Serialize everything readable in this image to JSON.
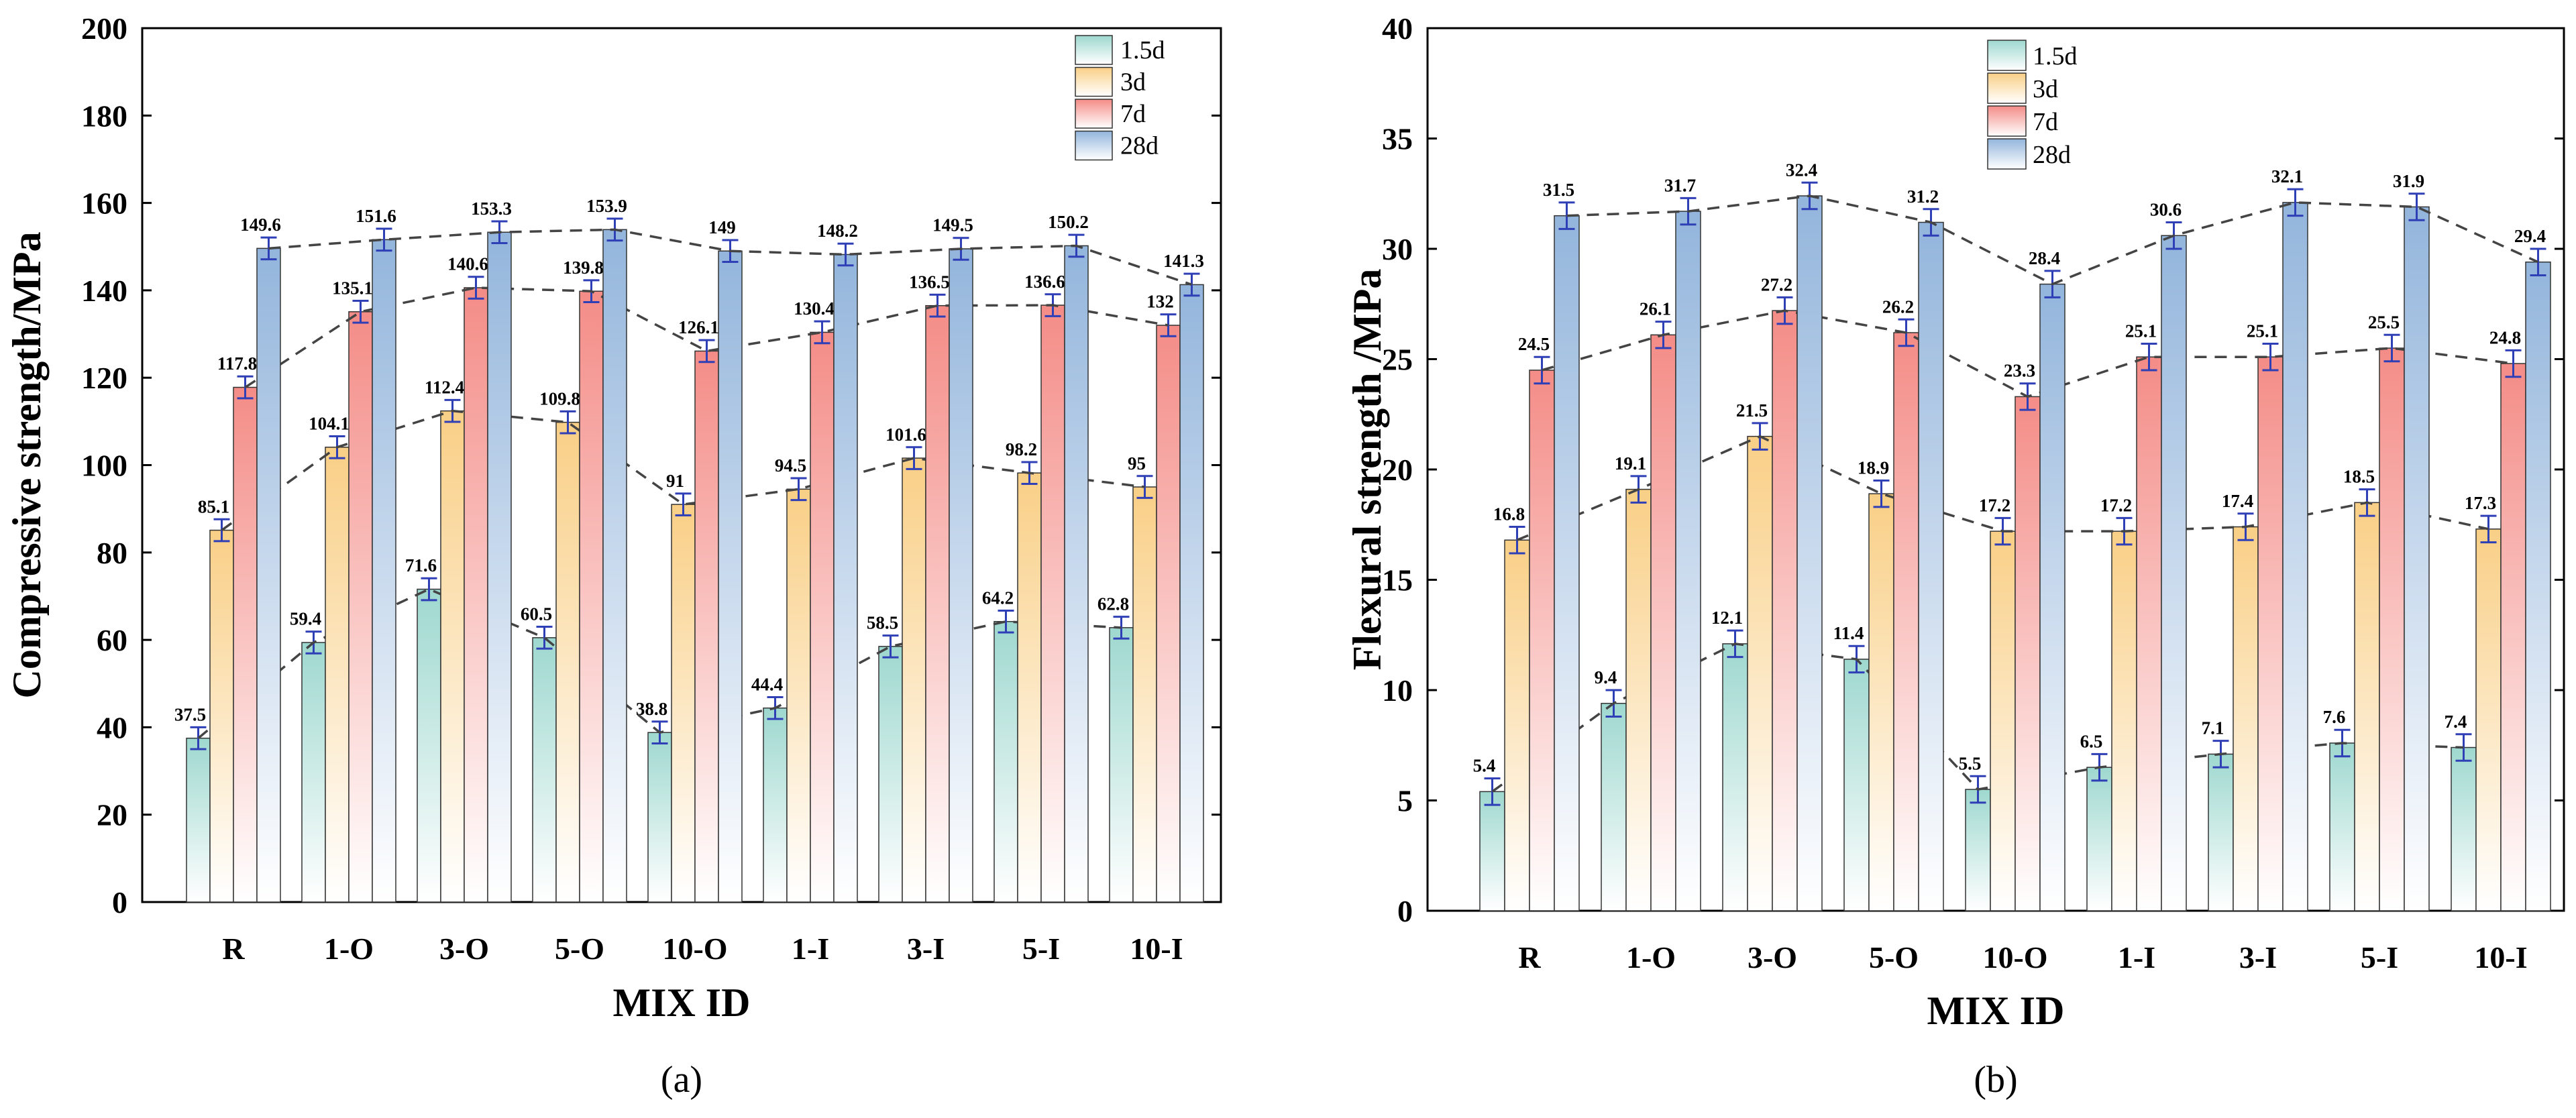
{
  "colors": {
    "1.5d": "#9ed8cf",
    "3d": "#f9cf86",
    "7d": "#f48c87",
    "28d": "#93b5dc",
    "error_bar": "#2f3fb6",
    "trend_line": "#444444"
  },
  "chart_data": [
    {
      "type": "bar",
      "caption": "(a)",
      "title": "",
      "xlabel": "MIX ID",
      "ylabel": "Compressive strength/MPa",
      "ylim": [
        0,
        200
      ],
      "yticks": [
        0,
        20,
        40,
        60,
        80,
        100,
        120,
        140,
        160,
        180,
        200
      ],
      "ytick_labels": [
        "0",
        "20",
        "40",
        "60",
        "80",
        "100",
        "120",
        "140",
        "160",
        "180",
        "200"
      ],
      "categories": [
        "R",
        "1-O",
        "3-O",
        "5-O",
        "10-O",
        "1-I",
        "3-I",
        "5-I",
        "10-I"
      ],
      "legend": {
        "position": "top-right",
        "entries": [
          "1.5d",
          "3d",
          "7d",
          "28d"
        ]
      },
      "series": [
        {
          "name": "1.5d",
          "values": [
            37.5,
            59.4,
            71.6,
            60.5,
            38.8,
            44.4,
            58.5,
            64.2,
            62.8
          ],
          "labels": [
            "37.5",
            "59.4",
            "71.6",
            "60.5",
            "38.8",
            "44.4",
            "58.5",
            "64.2",
            "62.8"
          ]
        },
        {
          "name": "3d",
          "values": [
            85.1,
            104.1,
            112.4,
            109.8,
            91,
            94.5,
            101.6,
            98.2,
            95
          ],
          "labels": [
            "85.1",
            "104.1",
            "112.4",
            "109.8",
            "91",
            "94.5",
            "101.6",
            "98.2",
            "95"
          ]
        },
        {
          "name": "7d",
          "values": [
            117.8,
            135.1,
            140.6,
            139.8,
            126.1,
            130.4,
            136.5,
            136.6,
            132
          ],
          "labels": [
            "117.8",
            "135.1",
            "140.6",
            "139.8",
            "126.1",
            "130.4",
            "136.5",
            "136.6",
            "132"
          ]
        },
        {
          "name": "28d",
          "values": [
            149.6,
            151.6,
            153.3,
            153.9,
            149,
            148.2,
            149.5,
            150.2,
            141.3
          ],
          "labels": [
            "149.6",
            "151.6",
            "153.3",
            "153.9",
            "149",
            "148.2",
            "149.5",
            "150.2",
            "141.3"
          ]
        }
      ],
      "error": 2.5
    },
    {
      "type": "bar",
      "caption": "(b)",
      "title": "",
      "xlabel": "MIX ID",
      "ylabel": "Flexural strength /MPa",
      "ylim": [
        0,
        40
      ],
      "yticks": [
        0,
        5,
        10,
        15,
        20,
        25,
        30,
        35,
        40
      ],
      "ytick_labels": [
        "0",
        "5",
        "10",
        "15",
        "20",
        "25",
        "30",
        "35",
        "40"
      ],
      "categories": [
        "R",
        "1-O",
        "3-O",
        "5-O",
        "10-O",
        "1-I",
        "3-I",
        "5-I",
        "10-I"
      ],
      "legend": {
        "position": "top-center",
        "entries": [
          "1.5d",
          "3d",
          "7d",
          "28d"
        ]
      },
      "series": [
        {
          "name": "1.5d",
          "values": [
            5.4,
            9.4,
            12.1,
            11.4,
            5.5,
            6.5,
            7.1,
            7.6,
            7.4
          ],
          "labels": [
            "5.4",
            "9.4",
            "12.1",
            "11.4",
            "5.5",
            "6.5",
            "7.1",
            "7.6",
            "7.4"
          ]
        },
        {
          "name": "3d",
          "values": [
            16.8,
            19.1,
            21.5,
            18.9,
            17.2,
            17.2,
            17.4,
            18.5,
            17.3
          ],
          "labels": [
            "16.8",
            "19.1",
            "21.5",
            "18.9",
            "17.2",
            "17.2",
            "17.4",
            "18.5",
            "17.3"
          ]
        },
        {
          "name": "7d",
          "values": [
            24.5,
            26.1,
            27.2,
            26.2,
            23.3,
            25.1,
            25.1,
            25.5,
            24.8
          ],
          "labels": [
            "24.5",
            "26.1",
            "27.2",
            "26.2",
            "23.3",
            "25.1",
            "25.1",
            "25.5",
            "24.8"
          ]
        },
        {
          "name": "28d",
          "values": [
            31.5,
            31.7,
            32.4,
            31.2,
            28.4,
            30.6,
            32.1,
            31.9,
            29.4
          ],
          "labels": [
            "31.5",
            "31.7",
            "32.4",
            "31.2",
            "28.4",
            "30.6",
            "32.1",
            "31.9",
            "29.4"
          ]
        }
      ],
      "error": 0.6
    }
  ]
}
